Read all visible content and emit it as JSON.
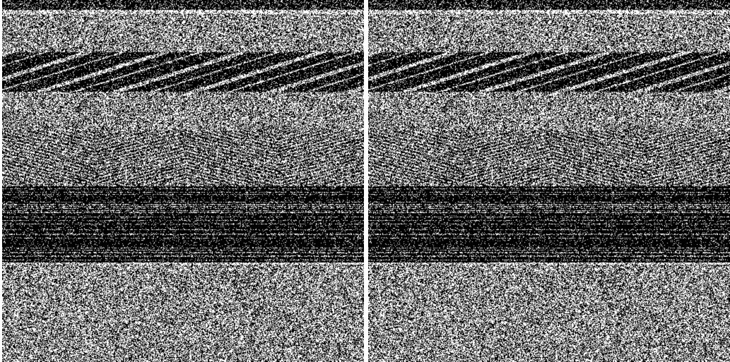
{
  "colors": {
    "background": "#ffffff",
    "ink": "#000000",
    "noise": "#ffffff"
  },
  "panels": [
    {
      "name": "left",
      "content": "noise-pattern"
    },
    {
      "name": "right",
      "content": "noise-pattern"
    }
  ],
  "identical_panels": true
}
